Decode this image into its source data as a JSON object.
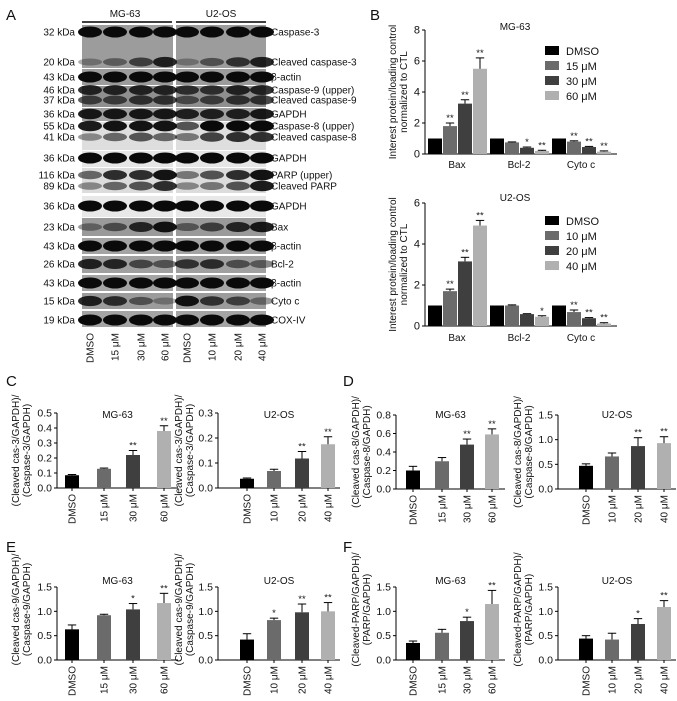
{
  "panel_labels": [
    "A",
    "B",
    "C",
    "D",
    "E",
    "F"
  ],
  "colors": {
    "dmso": "#000000",
    "low": "#6b6b6b",
    "mid": "#3f3f3f",
    "high": "#b0b0b0"
  },
  "blot": {
    "groups": [
      "MG-63",
      "U2-OS"
    ],
    "lanes": [
      "DMSO",
      "15 μM",
      "30 μM",
      "60 μM",
      "DMSO",
      "10 μM",
      "20 μM",
      "40 μM"
    ],
    "rows": [
      {
        "bands": [
          {
            "kda": "32 kDa",
            "protein": "Caspase-3",
            "intensity": [
              1,
              1,
              1,
              1,
              1,
              1,
              1,
              1
            ]
          },
          {
            "kda": "20 kDa",
            "protein": "Cleaved caspase-3",
            "intensity": [
              0.2,
              0.35,
              0.6,
              0.85,
              0.2,
              0.45,
              0.7,
              0.85
            ]
          }
        ]
      },
      {
        "bands": [
          {
            "kda": "43 kDa",
            "protein": "β-actin",
            "intensity": [
              1,
              1,
              1,
              1,
              1,
              1,
              1,
              1
            ]
          }
        ]
      },
      {
        "bands": [
          {
            "kda": "46 kDa",
            "protein": "Caspase-9 (upper)",
            "intensity": [
              0.8,
              0.8,
              0.8,
              0.8,
              0.7,
              0.7,
              0.8,
              0.8
            ]
          },
          {
            "kda": "37 kDa",
            "protein": "Cleaved caspase-9",
            "intensity": [
              0.6,
              0.6,
              0.7,
              0.7,
              0.5,
              0.6,
              0.7,
              0.7
            ]
          }
        ]
      },
      {
        "bands": [
          {
            "kda": "36 kDa",
            "protein": "GAPDH",
            "intensity": [
              0.9,
              0.9,
              0.9,
              0.9,
              0.85,
              0.85,
              0.85,
              0.9
            ]
          }
        ]
      },
      {
        "bands": [
          {
            "kda": "55 kDa",
            "protein": "Caspase-8 (upper)",
            "intensity": [
              0.9,
              0.95,
              0.95,
              0.95,
              0.6,
              1,
              1,
              1
            ]
          },
          {
            "kda": "41 kDa",
            "protein": "Cleaved caspase-8",
            "intensity": [
              0.3,
              0.5,
              0.6,
              0.5,
              0.4,
              0.7,
              0.8,
              0.8
            ]
          }
        ]
      },
      {
        "bands": [
          {
            "kda": "36 kDa",
            "protein": "GAPDH",
            "intensity": [
              1,
              1,
              1,
              1,
              1,
              1,
              1,
              1
            ]
          }
        ]
      },
      {
        "bands": [
          {
            "kda": "116 kDa",
            "protein": "PARP (upper)",
            "intensity": [
              0.5,
              0.8,
              0.8,
              0.95,
              0.4,
              0.6,
              0.8,
              0.95
            ]
          },
          {
            "kda": "89 kDa",
            "protein": "Cleaved PARP",
            "intensity": [
              0.3,
              0.5,
              0.6,
              0.8,
              0.3,
              0.4,
              0.6,
              0.9
            ]
          }
        ]
      },
      {
        "bands": [
          {
            "kda": "36 kDa",
            "protein": "GAPDH",
            "intensity": [
              1,
              1,
              1,
              1,
              1,
              1,
              1,
              1
            ]
          }
        ]
      },
      {
        "bands": [
          {
            "kda": "23 kDa",
            "protein": "Bax",
            "intensity": [
              0.3,
              0.5,
              0.8,
              0.95,
              0.4,
              0.6,
              0.8,
              0.9
            ]
          }
        ]
      },
      {
        "bands": [
          {
            "kda": "43 kDa",
            "protein": "β-actin",
            "intensity": [
              1,
              1,
              1,
              1,
              1,
              1,
              1,
              1
            ]
          }
        ]
      },
      {
        "bands": [
          {
            "kda": "26 kDa",
            "protein": "Bcl-2",
            "intensity": [
              0.85,
              0.8,
              0.55,
              0.45,
              0.7,
              0.75,
              0.5,
              0.4
            ]
          }
        ]
      },
      {
        "bands": [
          {
            "kda": "43 kDa",
            "protein": "β-actin",
            "intensity": [
              1,
              1,
              1,
              1,
              1,
              1,
              1,
              1
            ]
          }
        ]
      },
      {
        "bands": [
          {
            "kda": "15 kDa",
            "protein": "Cyto c",
            "intensity": [
              0.85,
              0.75,
              0.45,
              0.2,
              0.95,
              0.7,
              0.6,
              0.3
            ]
          }
        ]
      },
      {
        "bands": [
          {
            "kda": "19 kDa",
            "protein": "COX-IV",
            "intensity": [
              1,
              1,
              1,
              1,
              1,
              1,
              1,
              1
            ]
          }
        ]
      }
    ]
  },
  "chart_data": [
    {
      "id": "B-MG63",
      "type": "bar",
      "title": "MG-63",
      "ylabel": [
        "Interest protein/loading control",
        "normalized to CTL"
      ],
      "categories": [
        "Bax",
        "Bcl-2",
        "Cyto c"
      ],
      "ylim": [
        0,
        8
      ],
      "yticks": [
        "0",
        "2",
        "4",
        "6",
        "8"
      ],
      "legend": "top-right",
      "series": [
        {
          "name": "DMSO",
          "values": [
            1,
            1,
            1
          ],
          "errors": [
            0,
            0,
            0
          ],
          "sig": [
            "",
            "",
            ""
          ]
        },
        {
          "name": "15 μM",
          "values": [
            1.8,
            0.75,
            0.8
          ],
          "errors": [
            0.2,
            0.03,
            0.05
          ],
          "sig": [
            "**",
            "",
            "**"
          ]
        },
        {
          "name": "30 μM",
          "values": [
            3.25,
            0.4,
            0.45
          ],
          "errors": [
            0.25,
            0.05,
            0.04
          ],
          "sig": [
            "**",
            "*",
            "**"
          ]
        },
        {
          "name": "60 μM",
          "values": [
            5.5,
            0.2,
            0.15
          ],
          "errors": [
            0.7,
            0.04,
            0.05
          ],
          "sig": [
            "**",
            "**",
            "**"
          ]
        }
      ]
    },
    {
      "id": "B-U2OS",
      "type": "bar",
      "title": "U2-OS",
      "ylabel": [
        "Interest protein/loading control",
        "normalized to CTL"
      ],
      "categories": [
        "Bax",
        "Bcl-2",
        "Cyto c"
      ],
      "ylim": [
        0,
        6
      ],
      "yticks": [
        "0",
        "2",
        "4",
        "6"
      ],
      "legend": "top-right",
      "series": [
        {
          "name": "DMSO",
          "values": [
            1,
            1,
            1
          ],
          "errors": [
            0,
            0,
            0
          ],
          "sig": [
            "",
            "",
            ""
          ]
        },
        {
          "name": "10 μM",
          "values": [
            1.7,
            1.0,
            0.68
          ],
          "errors": [
            0.1,
            0.03,
            0.1
          ],
          "sig": [
            "**",
            "",
            "**"
          ]
        },
        {
          "name": "20 μM",
          "values": [
            3.15,
            0.58,
            0.38
          ],
          "errors": [
            0.2,
            0.02,
            0.03
          ],
          "sig": [
            "**",
            "",
            "**"
          ]
        },
        {
          "name": "40 μM",
          "values": [
            4.9,
            0.45,
            0.12
          ],
          "errors": [
            0.25,
            0.05,
            0.04
          ],
          "sig": [
            "**",
            "*",
            "**"
          ]
        }
      ]
    },
    {
      "id": "C-MG63",
      "type": "bar",
      "title": "MG-63",
      "ylabel": [
        "(Cleaved cas-3/GAPDH)/",
        "(Caspase-3/GAPDH)"
      ],
      "categories": [
        "DMSO",
        "15 μM",
        "30 μM",
        "60 μM"
      ],
      "values": [
        0.085,
        0.128,
        0.22,
        0.38
      ],
      "errors": [
        0.005,
        0.005,
        0.03,
        0.035
      ],
      "sig": [
        "",
        "",
        "**",
        "**"
      ],
      "ylim": [
        0,
        0.5
      ],
      "yticks": [
        "0.0",
        "0.1",
        "0.2",
        "0.3",
        "0.4",
        "0.5"
      ]
    },
    {
      "id": "C-U2OS",
      "type": "bar",
      "title": "U2-OS",
      "ylabel": [
        "(Cleaved cas-3/GAPDH)/",
        "(Caspase-3/GAPDH)"
      ],
      "categories": [
        "DMSO",
        "10 μM",
        "20 μM",
        "40 μM"
      ],
      "values": [
        0.037,
        0.068,
        0.118,
        0.175
      ],
      "errors": [
        0.003,
        0.007,
        0.028,
        0.03
      ],
      "sig": [
        "",
        "",
        "**",
        "**"
      ],
      "ylim": [
        0,
        0.3
      ],
      "yticks": [
        "0.0",
        "0.1",
        "0.2",
        "0.3"
      ]
    },
    {
      "id": "D-MG63",
      "type": "bar",
      "title": "MG-63",
      "ylabel": [
        "(Cleaved cas-8/GAPDH)/",
        "(Caspase-8/GAPDH)"
      ],
      "categories": [
        "DMSO",
        "15 μM",
        "30 μM",
        "60 μM"
      ],
      "values": [
        0.2,
        0.3,
        0.48,
        0.59
      ],
      "errors": [
        0.045,
        0.04,
        0.06,
        0.06
      ],
      "sig": [
        "",
        "",
        "**",
        "**"
      ],
      "ylim": [
        0,
        0.8
      ],
      "yticks": [
        "0.0",
        "0.2",
        "0.4",
        "0.6",
        "0.8"
      ]
    },
    {
      "id": "D-U2OS",
      "type": "bar",
      "title": "U2-OS",
      "ylabel": [
        "(Cleaved cas-8/GAPDH)/",
        "(Caspase-8/GAPDH)"
      ],
      "categories": [
        "DMSO",
        "10 μM",
        "20 μM",
        "40 μM"
      ],
      "values": [
        0.47,
        0.66,
        0.87,
        0.93
      ],
      "errors": [
        0.04,
        0.07,
        0.17,
        0.13
      ],
      "sig": [
        "",
        "",
        "**",
        "**"
      ],
      "ylim": [
        0,
        1.5
      ],
      "yticks": [
        "0.0",
        "0.5",
        "1.0",
        "1.5"
      ]
    },
    {
      "id": "E-MG63",
      "type": "bar",
      "title": "MG-63",
      "ylabel": [
        "(Cleaved cas-9/GAPDH)/",
        "(Caspase-9/GAPDH)"
      ],
      "categories": [
        "DMSO",
        "15 μM",
        "30 μM",
        "60 μM"
      ],
      "values": [
        0.63,
        0.92,
        1.04,
        1.17
      ],
      "errors": [
        0.09,
        0.02,
        0.12,
        0.2
      ],
      "sig": [
        "",
        "",
        "*",
        "**"
      ],
      "ylim": [
        0,
        1.5
      ],
      "yticks": [
        "0.0",
        "0.5",
        "1.0",
        "1.5"
      ]
    },
    {
      "id": "E-U2OS",
      "type": "bar",
      "title": "U2-OS",
      "ylabel": [
        "(Cleaved cas-9/GAPDH)/",
        "(Caspase-9/GAPDH)"
      ],
      "categories": [
        "DMSO",
        "10 μM",
        "20 μM",
        "40 μM"
      ],
      "values": [
        0.42,
        0.82,
        0.98,
        1.0
      ],
      "errors": [
        0.12,
        0.04,
        0.17,
        0.18
      ],
      "sig": [
        "",
        "*",
        "**",
        "**"
      ],
      "ylim": [
        0,
        1.5
      ],
      "yticks": [
        "0.0",
        "0.5",
        "1.0",
        "1.5"
      ]
    },
    {
      "id": "F-MG63",
      "type": "bar",
      "title": "MG-63",
      "ylabel": [
        "(Cleaved-PARP/GAPDH)/",
        "(PARP/GAPDH)"
      ],
      "categories": [
        "DMSO",
        "15 μM",
        "30 μM",
        "60 μM"
      ],
      "values": [
        0.35,
        0.56,
        0.8,
        1.15
      ],
      "errors": [
        0.04,
        0.07,
        0.08,
        0.28
      ],
      "sig": [
        "",
        "",
        "*",
        "**"
      ],
      "ylim": [
        0,
        1.5
      ],
      "yticks": [
        "0.0",
        "0.5",
        "1.0",
        "1.5"
      ]
    },
    {
      "id": "F-U2OS",
      "type": "bar",
      "title": "U2-OS",
      "ylabel": [
        "(Cleaved-PARP/GAPDH)/",
        "(PARP/GAPDH)"
      ],
      "categories": [
        "DMSO",
        "10 μM",
        "20 μM",
        "40 μM"
      ],
      "values": [
        0.44,
        0.42,
        0.74,
        1.09
      ],
      "errors": [
        0.06,
        0.13,
        0.11,
        0.13
      ],
      "sig": [
        "",
        "",
        "*",
        "**"
      ],
      "ylim": [
        0,
        1.5
      ],
      "yticks": [
        "0.0",
        "0.5",
        "1.0",
        "1.5"
      ]
    }
  ]
}
